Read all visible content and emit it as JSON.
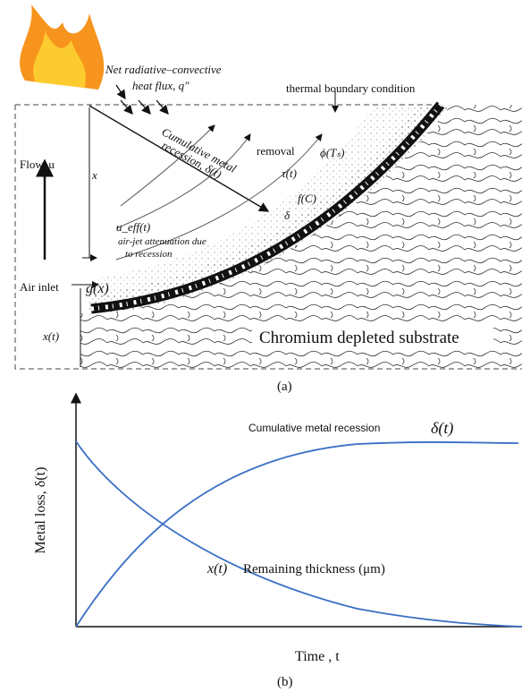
{
  "panel_a": {
    "label": "(a)",
    "texts": {
      "heat_flux_1": "Net radiative–convective",
      "heat_flux_2": "heat flux, q″",
      "boundary": "thermal boundary condition",
      "recession_1": "Cumulative metal",
      "recession_2": "recession, δ(t)",
      "removal": "removal",
      "phi": "ϕ(Tₛ)",
      "tau": "τ(t)",
      "fc": "f(C)",
      "delta": "δ",
      "ueff": "u_eff(t)",
      "attenuation_1": "air-jet attenuation due",
      "attenuation_2": "to recession",
      "flow": "Flow, u",
      "x": "x",
      "air_inlet": "Air inlet",
      "gx": "g(x)",
      "xt": "x(t)",
      "substrate": "Chromium depleted substrate"
    }
  },
  "panel_b": {
    "label": "(b)",
    "texts": {
      "recession": "Cumulative metal recession",
      "delta_t": "δ(t)",
      "xt": "x(t)",
      "remaining": "Remaining thickness (μm)",
      "y_axis": "Metal loss, δ(t)",
      "x_axis": "Time , t"
    }
  }
}
